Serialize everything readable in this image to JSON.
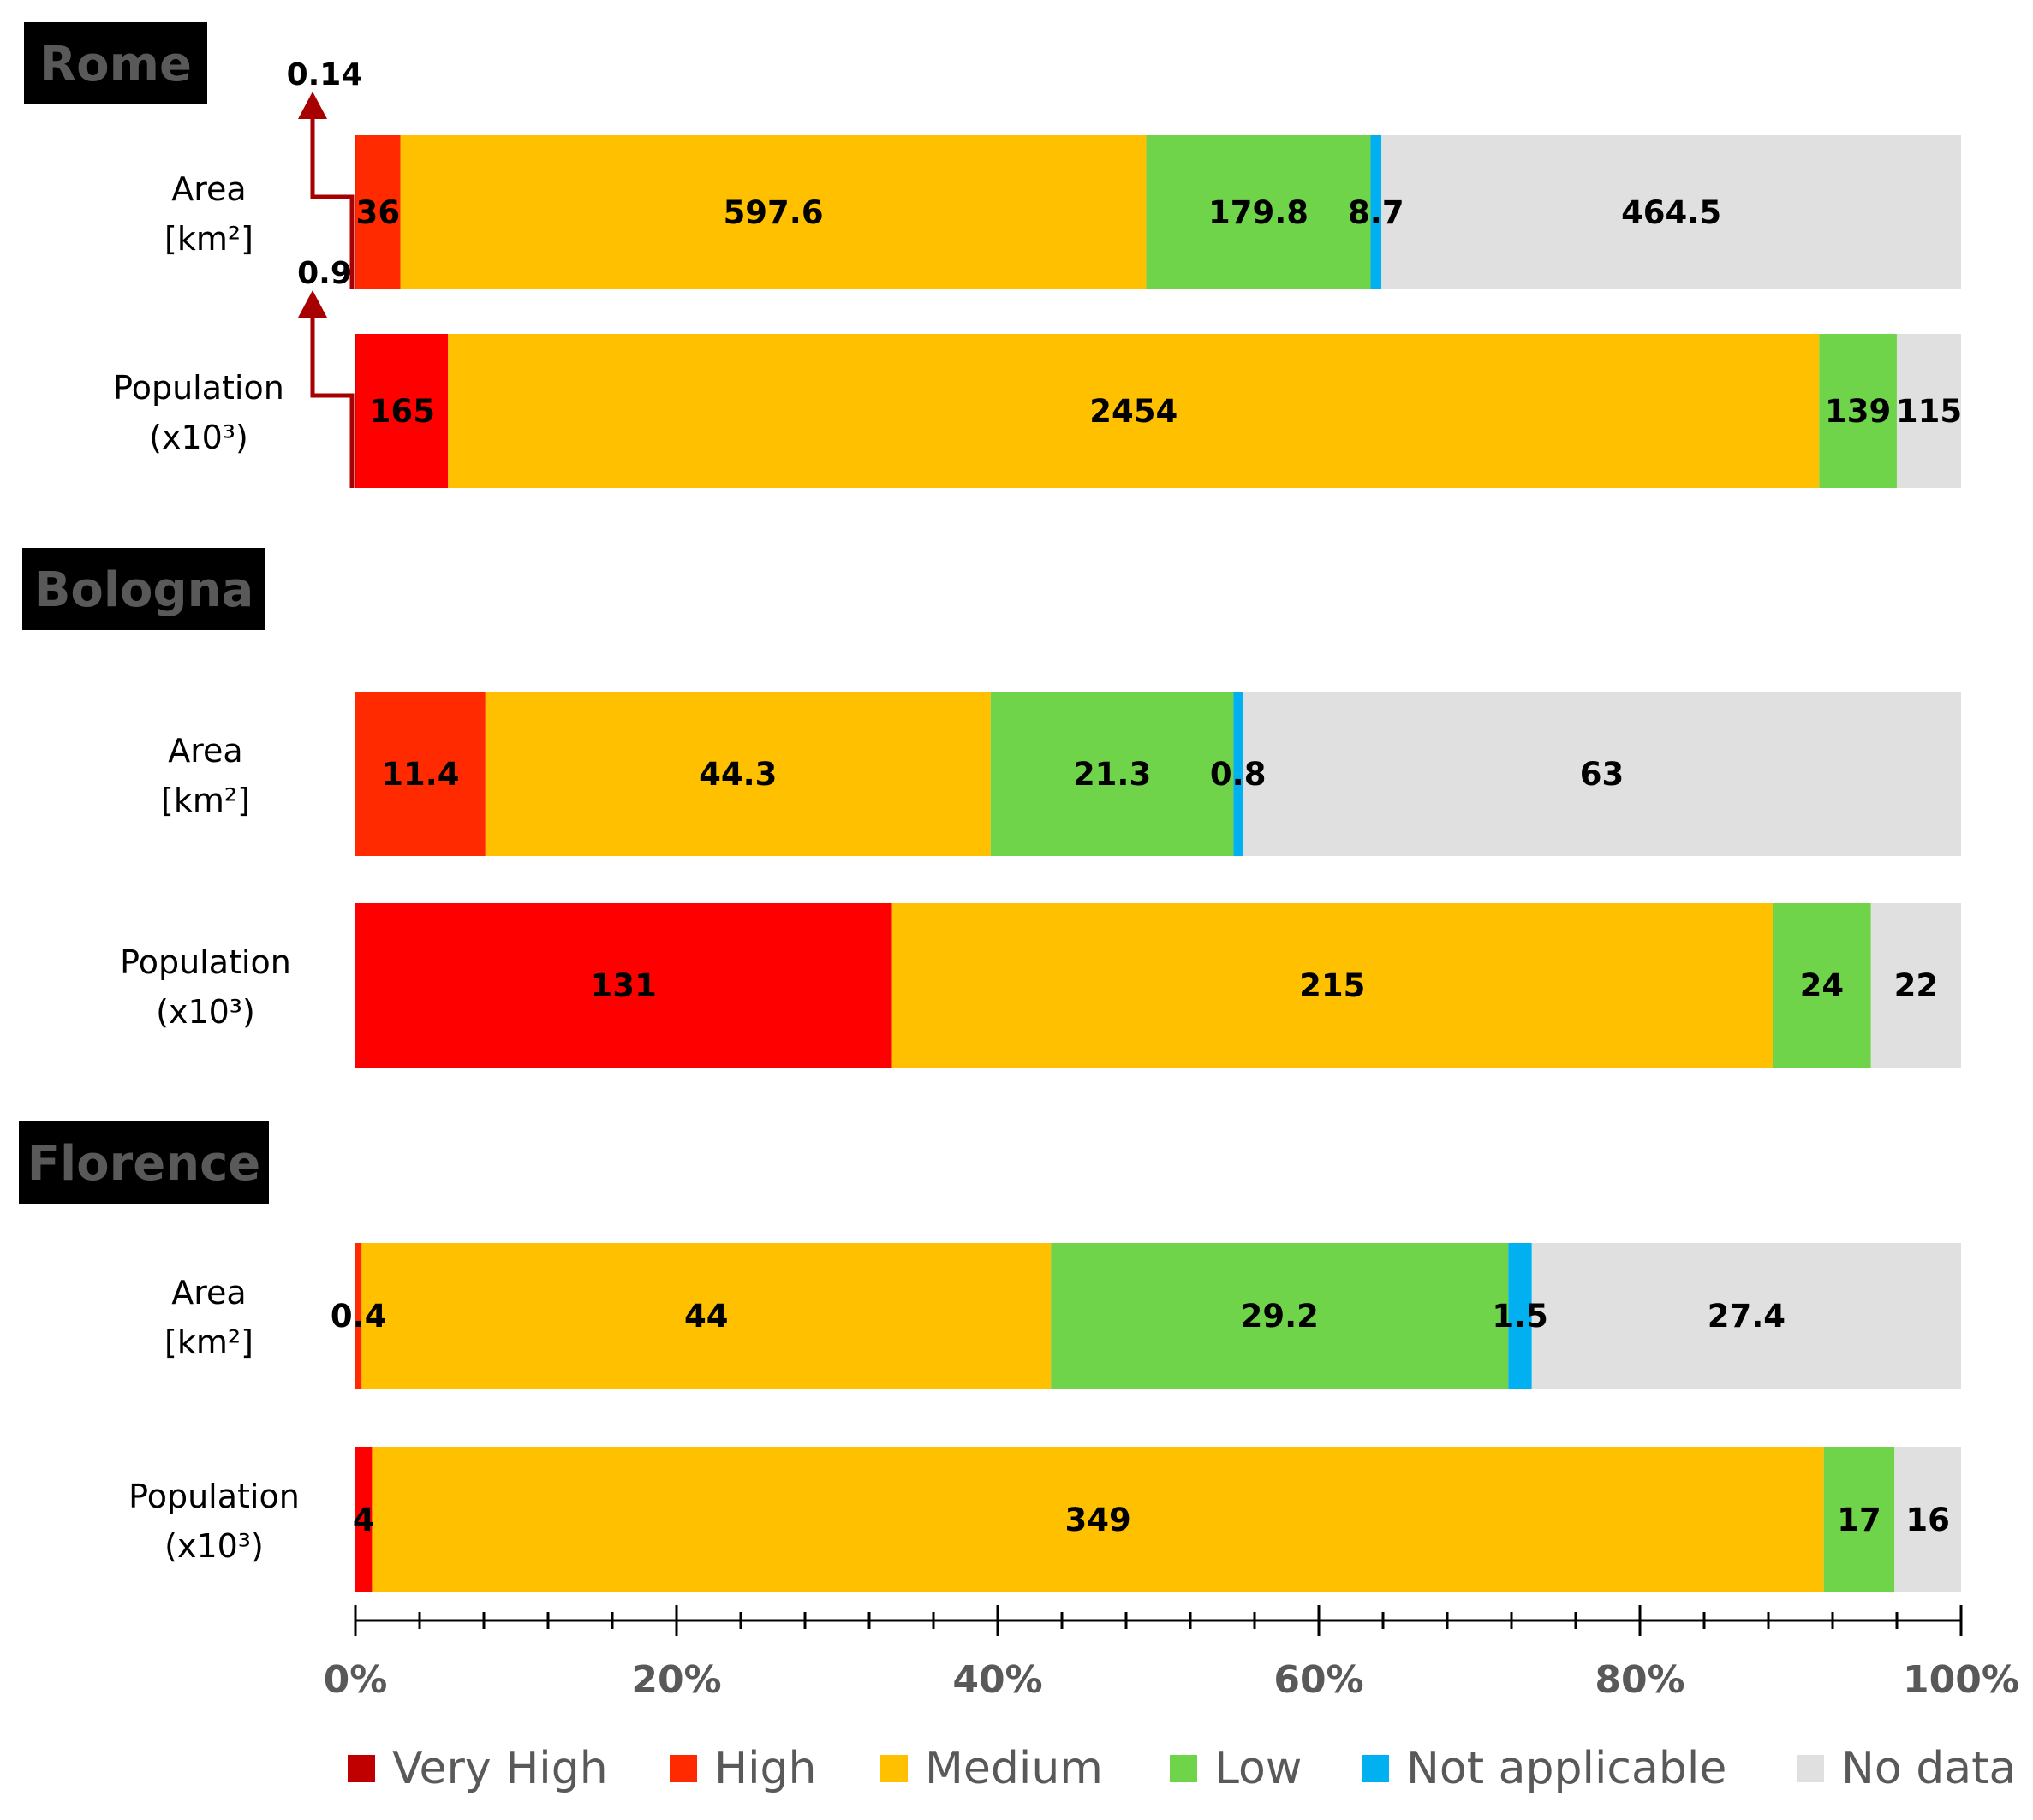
{
  "chart_data": {
    "type": "stacked-bar-horizontal-percent",
    "colors": {
      "Very High": "#c00000",
      "High": "#ff2a00",
      "High_population": "#ff0000",
      "Medium": "#ffc000",
      "Low": "#70d44b",
      "Not applicable": "#00b0f0",
      "No data": "#e0e0e0"
    },
    "categories": [
      "Very High",
      "High",
      "Medium",
      "Low",
      "Not applicable",
      "No data"
    ],
    "legend": [
      "Very High",
      "High",
      "Medium",
      "Low",
      "Not applicable",
      "No data"
    ],
    "x_ticks": [
      "0%",
      "20%",
      "40%",
      "60%",
      "80%",
      "100%"
    ],
    "xlim": [
      0,
      100
    ],
    "cities": [
      {
        "name": "Rome",
        "rows": [
          {
            "label_lines": [
              "Area",
              "[km²]"
            ],
            "values": {
              "Very High": 0.14,
              "High": 36,
              "Medium": 597.6,
              "Low": 179.8,
              "Not applicable": 8.7,
              "No data": 464.5
            },
            "labels": {
              "High": "36",
              "Medium": "597.6",
              "Low": "179.8",
              "Not applicable": "8.7",
              "No data": "464.5"
            },
            "callout": "0.14"
          },
          {
            "label_lines": [
              "Population",
              "(x10³)"
            ],
            "values": {
              "Very High": 0.9,
              "High": 165,
              "Medium": 2454,
              "Low": 139,
              "Not applicable": 0,
              "No data": 115
            },
            "labels": {
              "High": "165",
              "Medium": "2454",
              "Low": "139",
              "No data": "115"
            },
            "callout": "0.9"
          }
        ]
      },
      {
        "name": "Bologna",
        "rows": [
          {
            "label_lines": [
              "Area",
              "[km²]"
            ],
            "values": {
              "Very High": 0,
              "High": 11.4,
              "Medium": 44.3,
              "Low": 21.3,
              "Not applicable": 0.8,
              "No data": 63
            },
            "labels": {
              "High": "11.4",
              "Medium": "44.3",
              "Low": "21.3",
              "Not applicable": "0.8",
              "No data": "63"
            }
          },
          {
            "label_lines": [
              "Population",
              "(x10³)"
            ],
            "values": {
              "Very High": 0,
              "High": 131,
              "Medium": 215,
              "Low": 24,
              "Not applicable": 0,
              "No data": 22
            },
            "labels": {
              "High": "131",
              "Medium": "215",
              "Low": "24",
              "No data": "22"
            }
          }
        ]
      },
      {
        "name": "Florence",
        "rows": [
          {
            "label_lines": [
              "Area",
              "[km²]"
            ],
            "values": {
              "Very High": 0,
              "High": 0.4,
              "Medium": 44,
              "Low": 29.2,
              "Not applicable": 1.5,
              "No data": 27.4
            },
            "labels": {
              "High": "0.4",
              "Medium": "44",
              "Low": "29.2",
              "Not applicable": "1.5",
              "No data": "27.4"
            }
          },
          {
            "label_lines": [
              "Population",
              "(x10³)"
            ],
            "values": {
              "Very High": 0,
              "High": 4,
              "Medium": 349,
              "Low": 17,
              "Not applicable": 0,
              "No data": 16
            },
            "labels": {
              "High": "4",
              "Medium": "349",
              "Low": "17",
              "No data": "16"
            }
          }
        ]
      }
    ]
  }
}
